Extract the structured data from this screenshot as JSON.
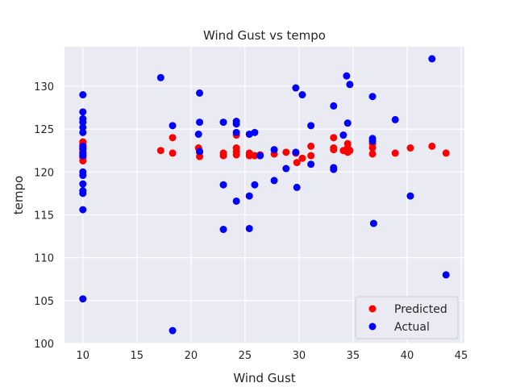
{
  "chart_data": {
    "type": "scatter",
    "title": "Wind Gust vs tempo",
    "xlabel": "Wind Gust",
    "ylabel": "tempo",
    "xlim": [
      8.3,
      45.3
    ],
    "ylim": [
      100,
      134.6
    ],
    "xticks": [
      10,
      15,
      20,
      25,
      30,
      35,
      40,
      45
    ],
    "yticks": [
      100,
      105,
      110,
      115,
      120,
      125,
      130
    ],
    "grid": true,
    "legend_position": "lower-right",
    "background": "#eaeaf2",
    "series": [
      {
        "name": "Predicted",
        "color": "#ff0000",
        "points": [
          [
            10,
            123.5
          ],
          [
            10,
            123.2
          ],
          [
            10,
            122.9
          ],
          [
            10,
            122.6
          ],
          [
            10,
            122.3
          ],
          [
            10,
            122.0
          ],
          [
            10,
            121.7
          ],
          [
            10,
            121.3
          ],
          [
            17.2,
            122.5
          ],
          [
            18.3,
            124.0
          ],
          [
            18.3,
            122.2
          ],
          [
            20.7,
            122.8
          ],
          [
            20.8,
            122.3
          ],
          [
            20.8,
            121.8
          ],
          [
            23.0,
            122.2
          ],
          [
            23.0,
            121.9
          ],
          [
            24.2,
            124.3
          ],
          [
            24.2,
            122.8
          ],
          [
            24.2,
            122.4
          ],
          [
            24.2,
            122.0
          ],
          [
            25.4,
            122.2
          ],
          [
            25.4,
            121.9
          ],
          [
            25.9,
            121.9
          ],
          [
            26.4,
            122.0
          ],
          [
            27.7,
            122.1
          ],
          [
            28.8,
            122.3
          ],
          [
            29.7,
            122.2
          ],
          [
            29.8,
            121.1
          ],
          [
            30.3,
            121.6
          ],
          [
            31.1,
            123.0
          ],
          [
            31.1,
            121.9
          ],
          [
            33.2,
            124.0
          ],
          [
            33.2,
            122.8
          ],
          [
            33.2,
            122.6
          ],
          [
            34.1,
            122.5
          ],
          [
            34.5,
            123.3
          ],
          [
            34.5,
            122.8
          ],
          [
            34.5,
            122.3
          ],
          [
            34.7,
            122.5
          ],
          [
            36.8,
            123.3
          ],
          [
            36.8,
            122.8
          ],
          [
            36.8,
            122.1
          ],
          [
            38.9,
            122.2
          ],
          [
            40.3,
            122.8
          ],
          [
            42.3,
            123.0
          ],
          [
            43.6,
            122.2
          ]
        ]
      },
      {
        "name": "Actual",
        "color": "#0000ff",
        "points": [
          [
            10,
            129.0
          ],
          [
            10,
            127.0
          ],
          [
            10,
            126.2
          ],
          [
            10,
            125.8
          ],
          [
            10,
            125.2
          ],
          [
            10,
            124.6
          ],
          [
            10,
            123.0
          ],
          [
            10,
            122.7
          ],
          [
            10,
            122.2
          ],
          [
            10,
            121.9
          ],
          [
            10,
            120.0
          ],
          [
            10,
            119.6
          ],
          [
            10,
            118.6
          ],
          [
            10,
            117.8
          ],
          [
            10,
            117.5
          ],
          [
            10,
            115.6
          ],
          [
            10,
            105.2
          ],
          [
            17.2,
            131.0
          ],
          [
            18.3,
            125.4
          ],
          [
            18.3,
            101.5
          ],
          [
            20.7,
            124.4
          ],
          [
            20.8,
            129.2
          ],
          [
            20.8,
            125.8
          ],
          [
            20.8,
            122.4
          ],
          [
            23.0,
            125.8
          ],
          [
            23.0,
            118.5
          ],
          [
            23.0,
            113.3
          ],
          [
            24.2,
            125.9
          ],
          [
            24.2,
            125.6
          ],
          [
            24.2,
            124.6
          ],
          [
            24.2,
            116.6
          ],
          [
            25.4,
            124.4
          ],
          [
            25.4,
            117.2
          ],
          [
            25.4,
            113.4
          ],
          [
            25.9,
            124.6
          ],
          [
            25.9,
            118.5
          ],
          [
            26.4,
            121.9
          ],
          [
            27.7,
            122.6
          ],
          [
            27.7,
            119.0
          ],
          [
            28.8,
            120.4
          ],
          [
            29.7,
            129.8
          ],
          [
            29.7,
            122.3
          ],
          [
            29.8,
            118.2
          ],
          [
            30.3,
            129.0
          ],
          [
            31.1,
            125.4
          ],
          [
            31.1,
            120.9
          ],
          [
            33.2,
            127.7
          ],
          [
            33.2,
            120.5
          ],
          [
            33.2,
            120.3
          ],
          [
            34.1,
            124.3
          ],
          [
            34.4,
            131.2
          ],
          [
            34.5,
            125.7
          ],
          [
            34.7,
            130.2
          ],
          [
            36.8,
            128.8
          ],
          [
            36.8,
            123.9
          ],
          [
            36.8,
            123.6
          ],
          [
            36.9,
            114.0
          ],
          [
            38.9,
            126.1
          ],
          [
            40.3,
            117.2
          ],
          [
            42.3,
            133.2
          ],
          [
            43.6,
            108.0
          ]
        ]
      }
    ]
  }
}
